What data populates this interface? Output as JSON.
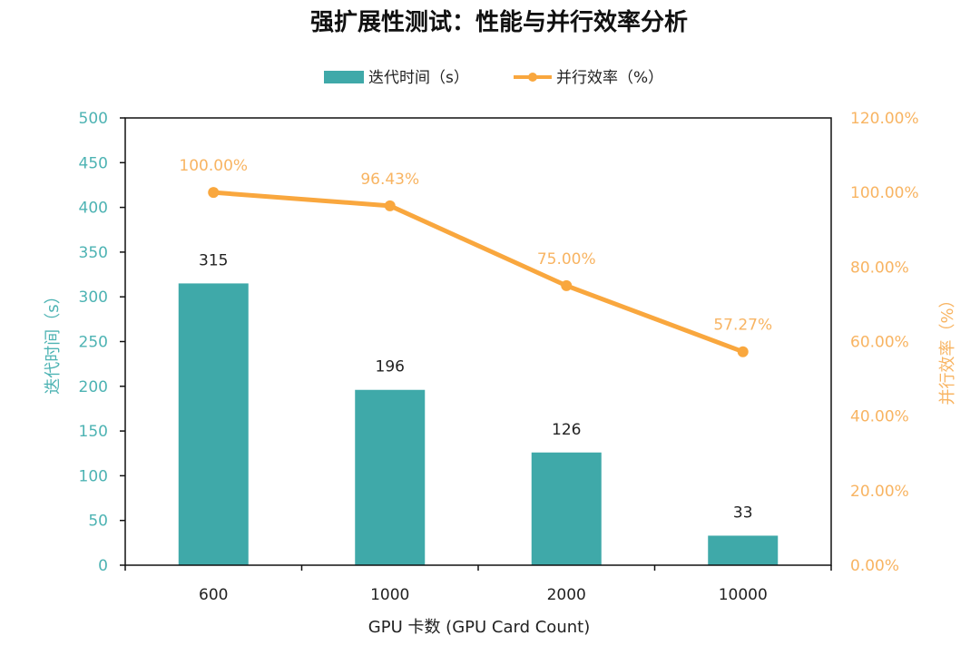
{
  "chart_data": {
    "type": "bar+line",
    "title": "强扩展性测试：性能与并行效率分析",
    "xlabel": "GPU 卡数 (GPU Card Count)",
    "ylabel_left": "迭代时间（s）",
    "ylabel_right": "并行效率（%）",
    "categories": [
      "600",
      "1000",
      "2000",
      "10000"
    ],
    "series": [
      {
        "name": "迭代时间（s）",
        "type": "bar",
        "axis": "left",
        "values": [
          315,
          196,
          126,
          33
        ],
        "labels": [
          "315",
          "196",
          "126",
          "33"
        ],
        "color": "#3fa9a9"
      },
      {
        "name": "并行效率（%）",
        "type": "line",
        "axis": "right",
        "values": [
          100.0,
          96.43,
          75.0,
          57.27
        ],
        "labels": [
          "100.00%",
          "96.43%",
          "75.00%",
          "57.27%"
        ],
        "color": "#f9a73e"
      }
    ],
    "ylim_left": [
      0,
      500
    ],
    "yticks_left": [
      "0",
      "50",
      "100",
      "150",
      "200",
      "250",
      "300",
      "350",
      "400",
      "450",
      "500"
    ],
    "ylim_right": [
      0,
      120
    ],
    "yticks_right": [
      "0.00%",
      "20.00%",
      "40.00%",
      "60.00%",
      "80.00%",
      "100.00%",
      "120.00%"
    ],
    "left_axis_color": "#4db3b3",
    "right_axis_color": "#f8b462",
    "grid": false,
    "legend_position": "top"
  }
}
